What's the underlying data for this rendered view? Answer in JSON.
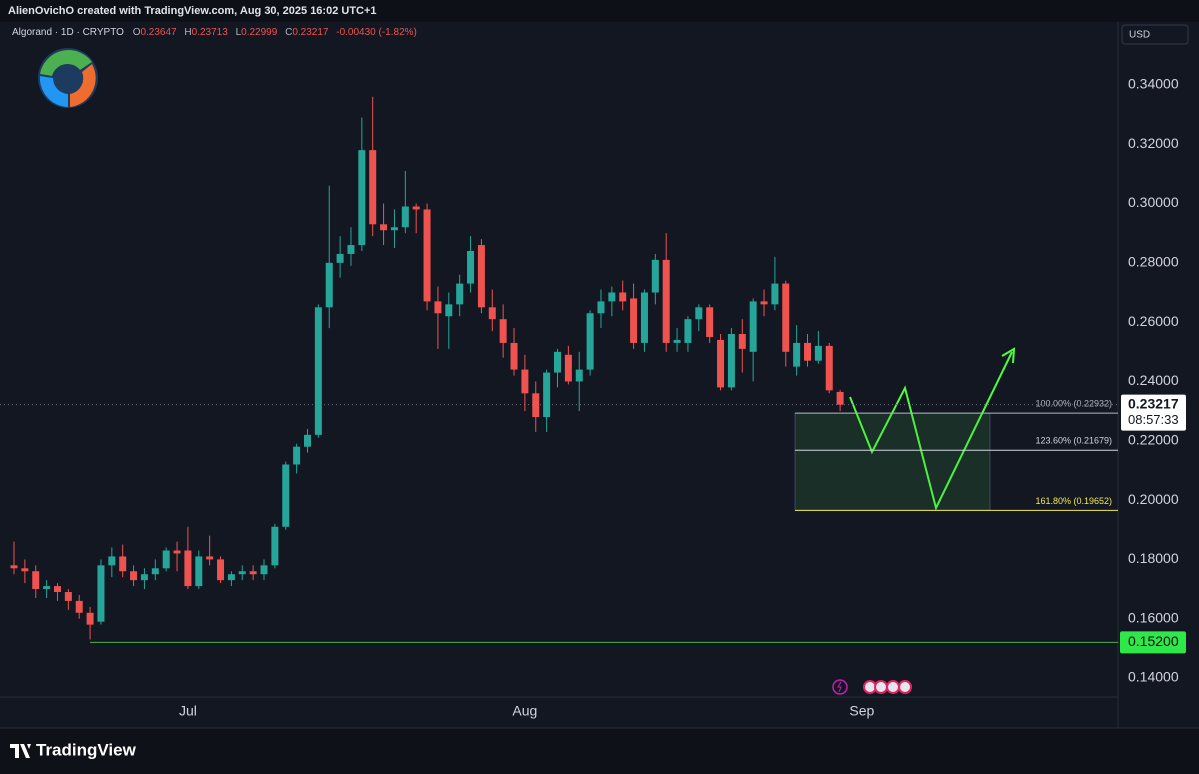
{
  "header": {
    "text": "AlienOvichO created with TradingView.com, Aug 30, 2025 16:02 UTC+1"
  },
  "footer": {
    "brand": "TradingView"
  },
  "chart_data": {
    "type": "candlestick",
    "title": "Algorand · 1D · CRYPTO",
    "legend_values": [
      {
        "key": "O",
        "text": "0.23647"
      },
      {
        "key": "H",
        "text": "0.23713"
      },
      {
        "key": "L",
        "text": "0.22999"
      },
      {
        "key": "C",
        "text": "0.23217"
      }
    ],
    "change": "-0.00430 (-1.82%)",
    "currency": "USD",
    "categories": [
      null,
      null,
      null,
      null,
      null,
      null,
      null,
      null,
      null,
      null,
      null,
      null,
      null,
      null,
      null,
      null,
      "Jul",
      null,
      null,
      null,
      null,
      null,
      null,
      null,
      null,
      null,
      null,
      null,
      null,
      null,
      null,
      null,
      null,
      null,
      null,
      null,
      null,
      null,
      null,
      null,
      null,
      null,
      null,
      null,
      null,
      null,
      null,
      "Aug",
      null,
      null,
      null,
      null,
      null,
      null,
      null,
      null,
      null,
      null,
      null,
      null,
      null,
      null,
      null,
      null,
      null,
      null,
      null,
      null,
      null,
      null,
      null,
      null,
      null,
      null,
      null,
      null,
      null,
      null,
      "Sep"
    ],
    "open": [
      0.178,
      0.177,
      0.176,
      0.17,
      0.171,
      0.169,
      0.166,
      0.162,
      0.159,
      0.178,
      0.181,
      0.176,
      0.173,
      0.175,
      0.177,
      0.183,
      0.183,
      0.171,
      0.181,
      0.18,
      0.173,
      0.175,
      0.176,
      0.175,
      0.178,
      0.191,
      0.212,
      0.218,
      0.222,
      0.265,
      0.28,
      0.283,
      0.286,
      0.318,
      0.293,
      0.291,
      0.292,
      0.299,
      0.298,
      0.267,
      0.262,
      0.266,
      0.273,
      0.286,
      0.265,
      0.261,
      0.253,
      0.244,
      0.236,
      0.228,
      0.243,
      0.249,
      0.24,
      0.244,
      0.263,
      0.267,
      0.27,
      0.268,
      0.253,
      0.27,
      0.281,
      0.253,
      0.253,
      0.261,
      0.265,
      0.254,
      0.238,
      0.256,
      0.25,
      0.267,
      0.266,
      0.273,
      0.245,
      0.253,
      0.247,
      0.252,
      0.23647,
      null,
      null
    ],
    "high": [
      0.186,
      0.18,
      0.178,
      0.173,
      0.172,
      0.17,
      0.168,
      0.164,
      0.18,
      0.184,
      0.185,
      0.178,
      0.177,
      0.18,
      0.184,
      0.186,
      0.191,
      0.183,
      0.188,
      0.181,
      0.176,
      0.178,
      0.178,
      0.18,
      0.192,
      0.213,
      0.219,
      0.224,
      0.266,
      0.306,
      0.289,
      0.292,
      0.329,
      0.336,
      0.3,
      0.298,
      0.311,
      0.3,
      0.3,
      0.272,
      0.27,
      0.276,
      0.289,
      0.288,
      0.271,
      0.266,
      0.258,
      0.249,
      0.24,
      0.244,
      0.251,
      0.252,
      0.25,
      0.264,
      0.271,
      0.272,
      0.274,
      0.273,
      0.271,
      0.283,
      0.29,
      0.258,
      0.262,
      0.266,
      0.266,
      0.256,
      0.258,
      0.261,
      0.268,
      0.271,
      0.282,
      0.274,
      0.259,
      0.256,
      0.257,
      0.253,
      0.23713,
      null,
      null
    ],
    "low": [
      0.175,
      0.172,
      0.167,
      0.167,
      0.166,
      0.163,
      0.16,
      0.153,
      0.158,
      0.174,
      0.174,
      0.171,
      0.17,
      0.173,
      0.176,
      0.176,
      0.17,
      0.17,
      0.178,
      0.172,
      0.171,
      0.173,
      0.173,
      0.173,
      0.177,
      0.19,
      0.209,
      0.216,
      0.221,
      0.258,
      0.275,
      0.279,
      0.284,
      0.289,
      0.286,
      0.285,
      0.29,
      0.29,
      0.264,
      0.251,
      0.251,
      0.262,
      0.27,
      0.263,
      0.257,
      0.248,
      0.242,
      0.23,
      0.223,
      0.223,
      0.238,
      0.239,
      0.23,
      0.242,
      0.258,
      0.262,
      0.264,
      0.251,
      0.25,
      0.266,
      0.25,
      0.25,
      0.25,
      0.257,
      0.253,
      0.237,
      0.237,
      0.243,
      0.24,
      0.262,
      0.264,
      0.245,
      0.242,
      0.245,
      0.246,
      0.236,
      0.22999,
      null,
      null
    ],
    "close": [
      0.177,
      0.176,
      0.17,
      0.171,
      0.169,
      0.166,
      0.162,
      0.158,
      0.178,
      0.181,
      0.176,
      0.173,
      0.175,
      0.177,
      0.183,
      0.182,
      0.171,
      0.181,
      0.18,
      0.173,
      0.175,
      0.176,
      0.175,
      0.178,
      0.191,
      0.212,
      0.218,
      0.222,
      0.265,
      0.28,
      0.283,
      0.286,
      0.318,
      0.293,
      0.291,
      0.292,
      0.299,
      0.298,
      0.267,
      0.263,
      0.266,
      0.273,
      0.284,
      0.265,
      0.261,
      0.253,
      0.244,
      0.236,
      0.228,
      0.243,
      0.25,
      0.24,
      0.244,
      0.263,
      0.267,
      0.27,
      0.267,
      0.253,
      0.27,
      0.281,
      0.253,
      0.254,
      0.261,
      0.265,
      0.255,
      0.238,
      0.256,
      0.251,
      0.267,
      0.266,
      0.273,
      0.25,
      0.253,
      0.247,
      0.252,
      0.237,
      0.23217,
      null,
      null
    ],
    "up_color": "#26a69a",
    "down_color": "#ef5350",
    "ylim": [
      0.1336,
      0.3602
    ],
    "yticks": [
      {
        "value": 0.14,
        "label": "0.14000"
      },
      {
        "value": 0.16,
        "label": "0.16000"
      },
      {
        "value": 0.18,
        "label": "0.18000"
      },
      {
        "value": 0.2,
        "label": "0.20000"
      },
      {
        "value": 0.22,
        "label": "0.22000"
      },
      {
        "value": 0.24,
        "label": "0.24000"
      },
      {
        "value": 0.26,
        "label": "0.26000"
      },
      {
        "value": 0.28,
        "label": "0.28000"
      },
      {
        "value": 0.3,
        "label": "0.30000"
      },
      {
        "value": 0.32,
        "label": "0.32000"
      },
      {
        "value": 0.34,
        "label": "0.34000"
      }
    ],
    "grid": false,
    "last_price": {
      "value": 0.23217,
      "label": "0.23217"
    },
    "countdown": "08:57:33",
    "horizontal_line": {
      "value": 0.152,
      "label": "0.15200",
      "color": "#4caf50"
    },
    "fib_levels": [
      {
        "value": 0.22932,
        "label": "100.00% (0.22932)",
        "color": "#b2b5be"
      },
      {
        "value": 0.21679,
        "label": "123.60% (0.21679)",
        "color": "#d1d4dc"
      },
      {
        "value": 0.19652,
        "label": "161.80% (0.19652)",
        "color": "#f2e94e"
      }
    ]
  }
}
